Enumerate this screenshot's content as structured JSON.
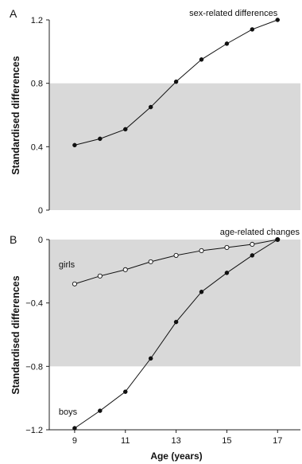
{
  "panel_letters": [
    "A",
    "B"
  ],
  "chart_data": [
    {
      "type": "line",
      "ylabel": "Standardised differences",
      "ylim": [
        0,
        1.2
      ],
      "yticks": [
        0,
        0.4,
        0.8,
        1.2
      ],
      "ytick_labels": [
        "0",
        "0.4",
        "0.8",
        "1.2"
      ],
      "xlim": [
        8,
        17.9
      ],
      "shaded_band": [
        0,
        0.8
      ],
      "series": [
        {
          "name": "sex-related differences",
          "marker": "filled",
          "x": [
            9,
            10,
            11,
            12,
            13,
            14,
            15,
            16,
            17
          ],
          "y": [
            0.41,
            0.45,
            0.51,
            0.65,
            0.81,
            0.95,
            1.05,
            1.14,
            1.2
          ]
        }
      ]
    },
    {
      "type": "line",
      "ylabel": "Standardised differences",
      "xlabel": "Age (years)",
      "ylim": [
        -1.2,
        0
      ],
      "yticks": [
        -1.2,
        -0.8,
        -0.4,
        0
      ],
      "ytick_labels": [
        "−1.2",
        "−0.8",
        "−0.4",
        "0"
      ],
      "xlim": [
        8,
        17.9
      ],
      "xticks": [
        9,
        11,
        13,
        15,
        17
      ],
      "xtick_labels": [
        "9",
        "11",
        "13",
        "15",
        "17"
      ],
      "shaded_band": [
        -0.8,
        0
      ],
      "annotation": "age-related changes",
      "series": [
        {
          "name": "girls",
          "marker": "open",
          "x": [
            9,
            10,
            11,
            12,
            13,
            14,
            15,
            16,
            17
          ],
          "y": [
            -0.28,
            -0.23,
            -0.19,
            -0.14,
            -0.1,
            -0.07,
            -0.05,
            -0.03,
            0
          ]
        },
        {
          "name": "boys",
          "marker": "filled",
          "x": [
            9,
            10,
            11,
            12,
            13,
            14,
            15,
            16,
            17
          ],
          "y": [
            -1.19,
            -1.08,
            -0.96,
            -0.75,
            -0.52,
            -0.33,
            -0.21,
            -0.1,
            0
          ]
        }
      ]
    }
  ]
}
